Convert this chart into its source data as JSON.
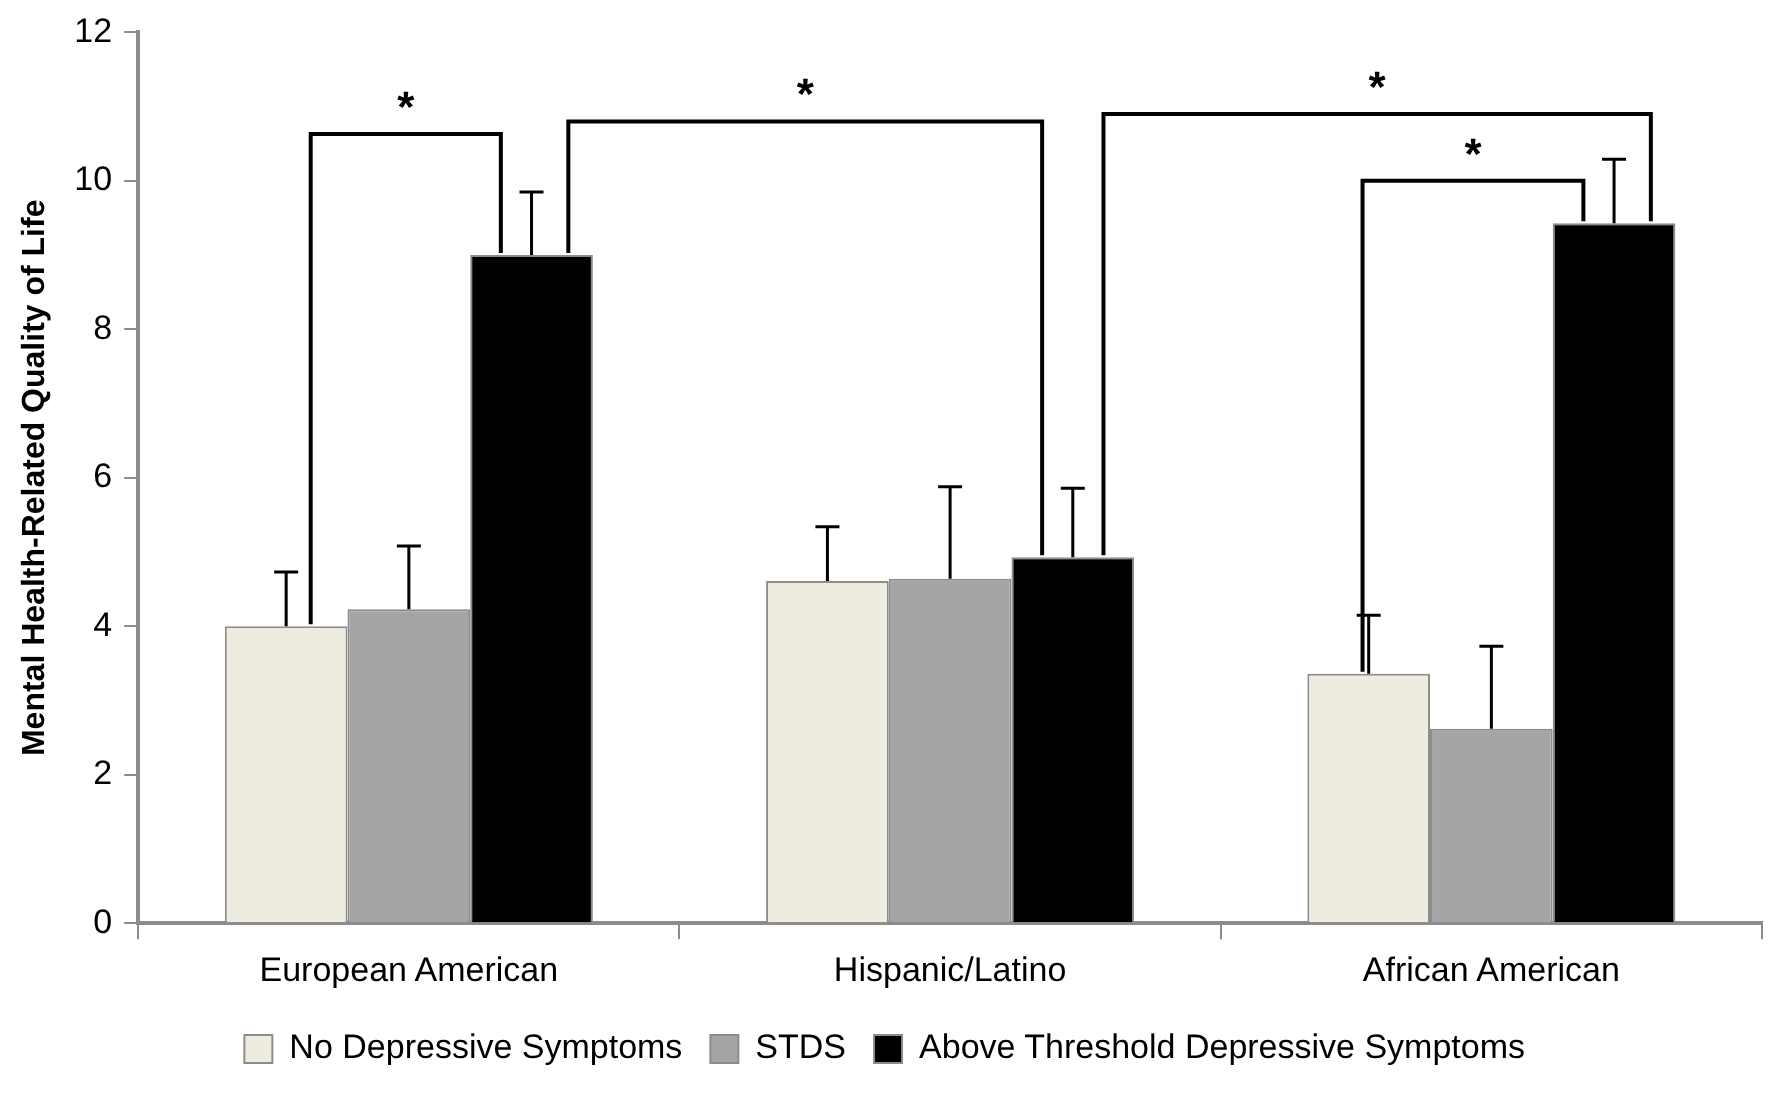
{
  "chart_data": {
    "type": "bar",
    "ylabel": "Mental Health-Related Quality of Life",
    "categories": [
      "European American",
      "Hispanic/Latino",
      "African American"
    ],
    "series": [
      {
        "name": "No Depressive Symptoms",
        "color": "#eeebe0",
        "values": [
          4.0,
          4.61,
          3.36
        ],
        "errors": [
          0.73,
          0.73,
          0.79
        ]
      },
      {
        "name": "STDS",
        "color": "#a5a5a5",
        "values": [
          4.23,
          4.64,
          2.62
        ],
        "errors": [
          0.85,
          1.24,
          1.11
        ]
      },
      {
        "name": "Above Threshold Depressive Symptoms",
        "color": "#000000",
        "values": [
          9.0,
          4.93,
          9.43
        ],
        "errors": [
          0.85,
          0.93,
          0.86
        ]
      }
    ],
    "ylim": [
      0,
      12
    ],
    "yticks": [
      0,
      2,
      4,
      6,
      8,
      10,
      12
    ],
    "grid": false,
    "legend": "bottom",
    "annotations": [
      "*",
      "*",
      "*",
      "*"
    ]
  }
}
